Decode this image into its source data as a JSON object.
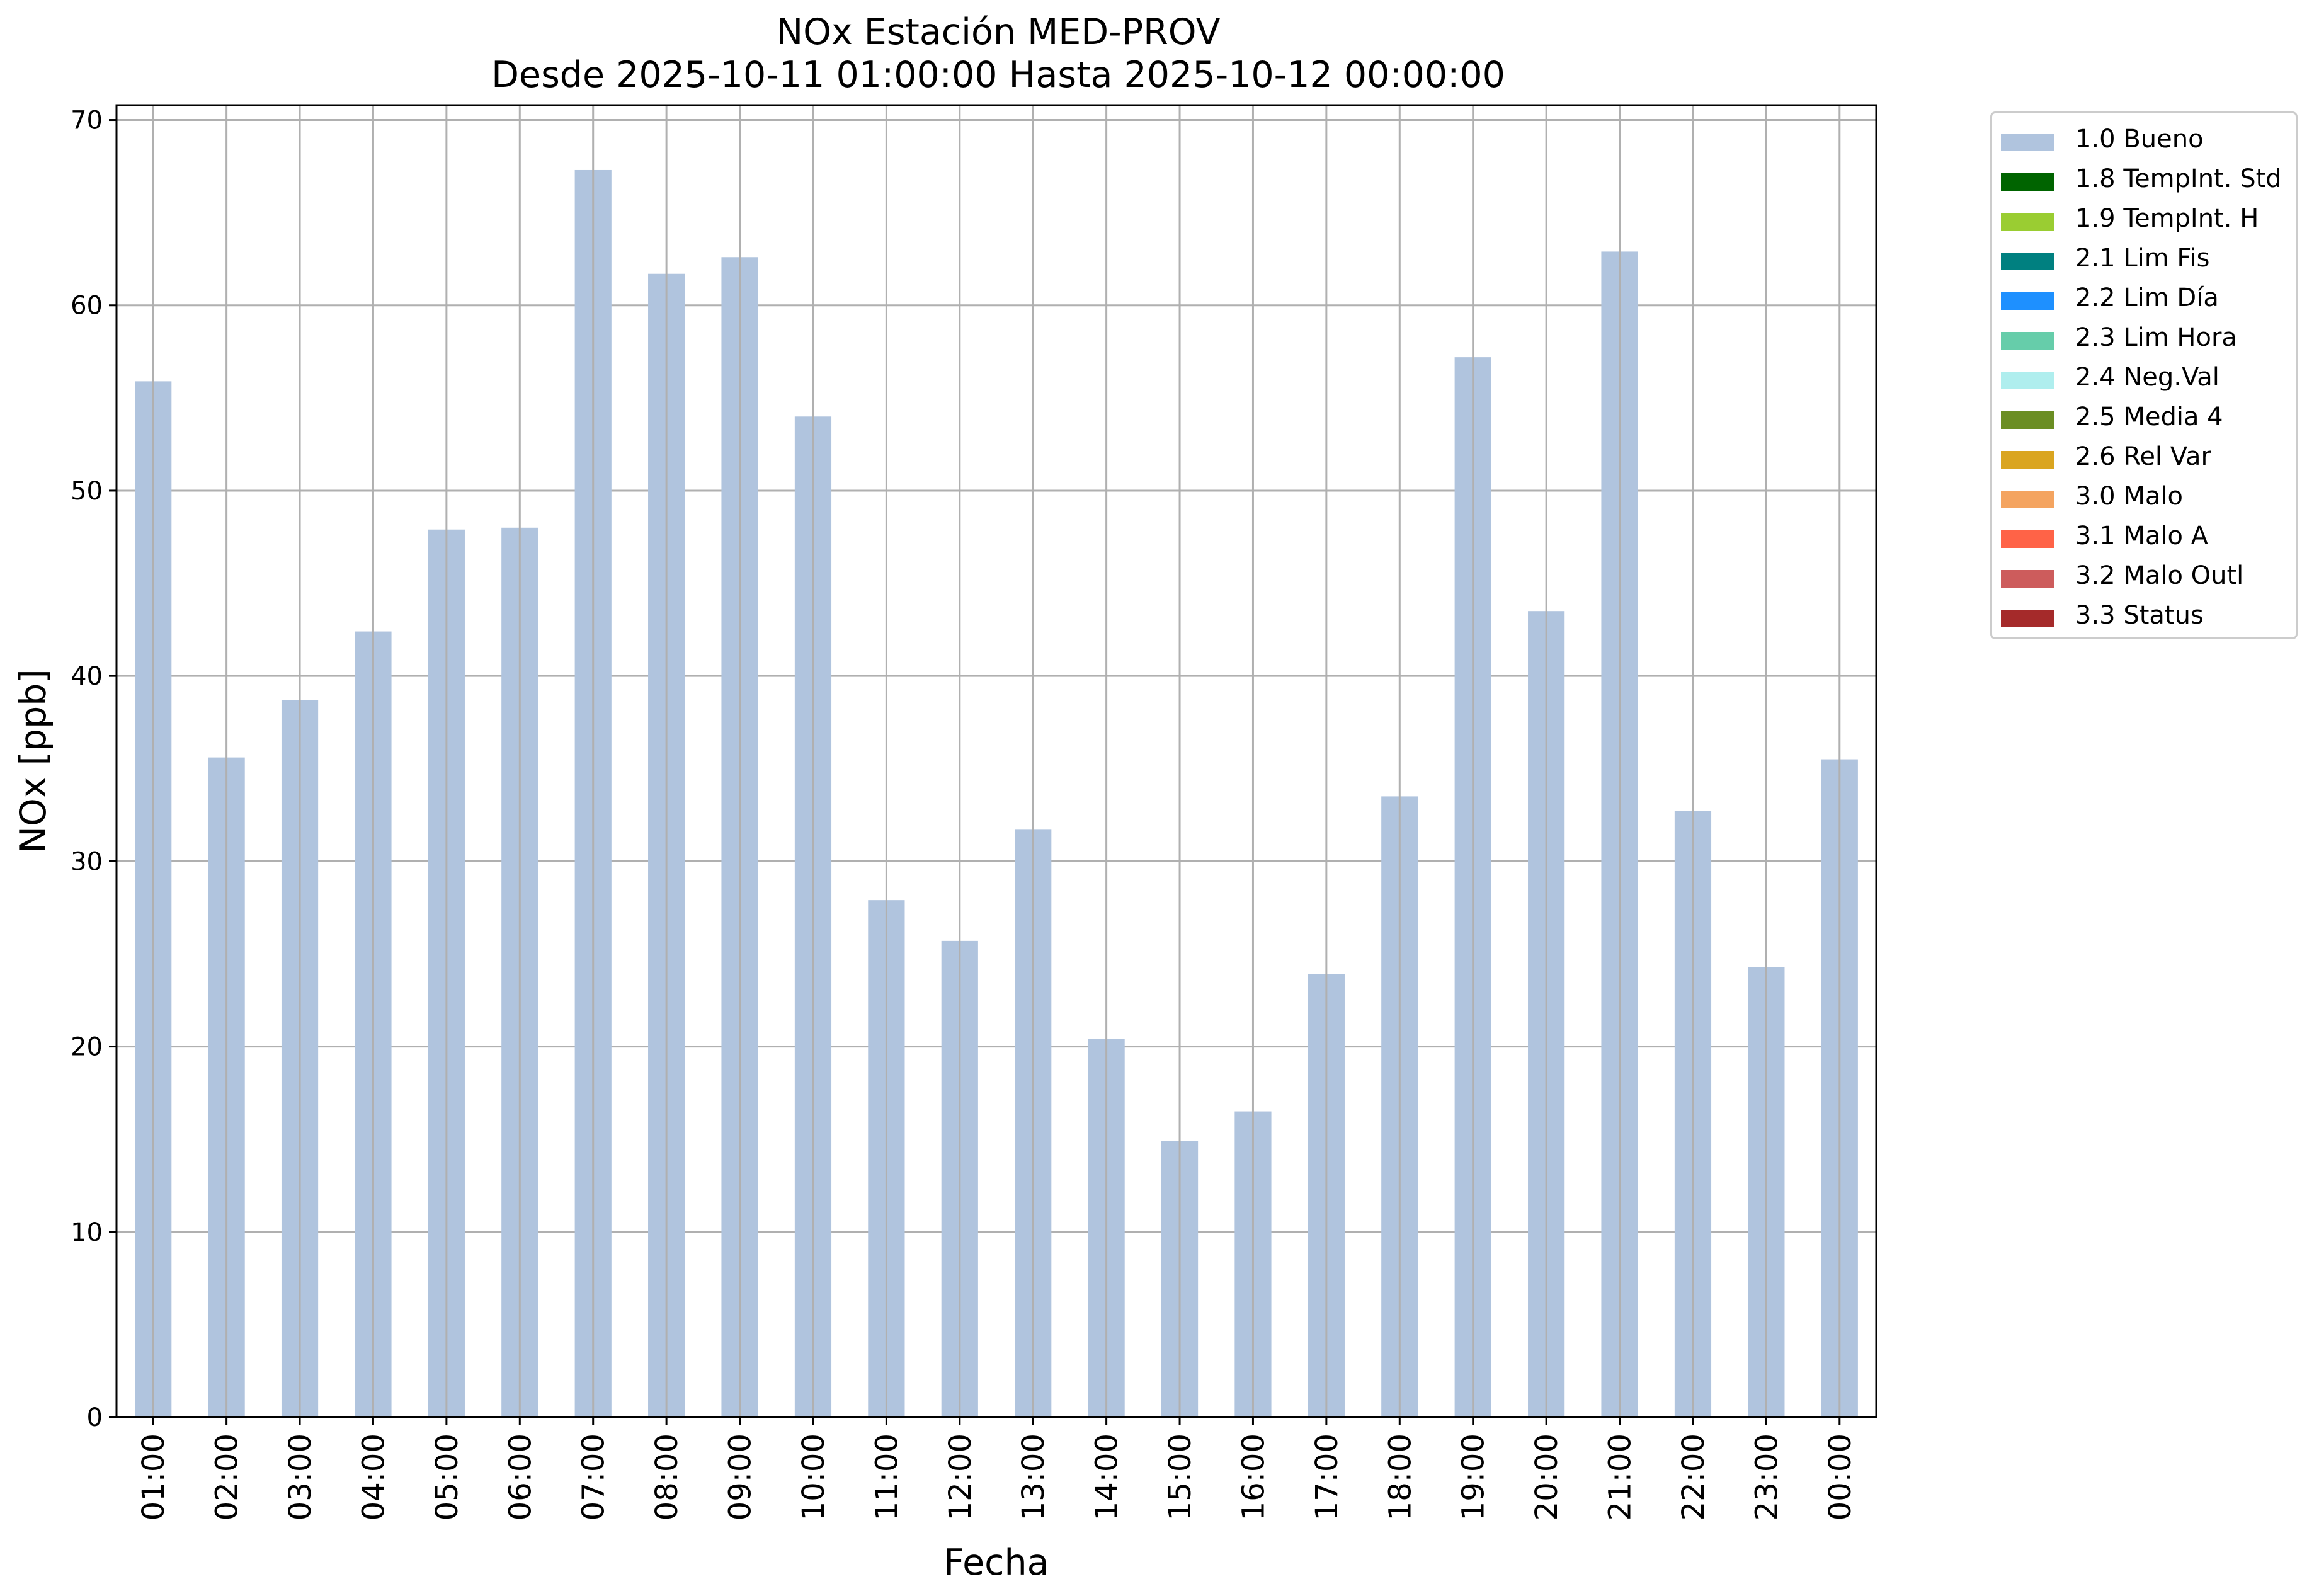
{
  "chart_data": {
    "type": "bar",
    "title": "NOx Estación MED-PROV",
    "subtitle": "Desde 2025-10-11 01:00:00 Hasta 2025-10-12 00:00:00",
    "xlabel": "Fecha",
    "ylabel": "NOx [ppb]",
    "ylim": [
      0,
      70.8
    ],
    "yticks": [
      0,
      10,
      20,
      30,
      40,
      50,
      60,
      70
    ],
    "grid": true,
    "legend_position": "outside-right-top",
    "categories": [
      "01:00",
      "02:00",
      "03:00",
      "04:00",
      "05:00",
      "06:00",
      "07:00",
      "08:00",
      "09:00",
      "10:00",
      "11:00",
      "12:00",
      "13:00",
      "14:00",
      "15:00",
      "16:00",
      "17:00",
      "18:00",
      "19:00",
      "20:00",
      "21:00",
      "22:00",
      "23:00",
      "00:00"
    ],
    "series": [
      {
        "name": "1.0 Bueno",
        "color": "#b0c4de",
        "values": [
          55.9,
          35.6,
          38.7,
          42.4,
          47.9,
          48.0,
          67.3,
          61.7,
          62.6,
          54.0,
          27.9,
          25.7,
          31.7,
          20.4,
          14.9,
          16.5,
          23.9,
          33.5,
          57.2,
          43.5,
          62.9,
          32.7,
          24.3,
          35.5
        ]
      }
    ],
    "legend": [
      {
        "label": "1.0 Bueno",
        "color": "#b0c4de"
      },
      {
        "label": "1.8 TempInt. Std",
        "color": "#006400"
      },
      {
        "label": "1.9 TempInt. H",
        "color": "#9acd32"
      },
      {
        "label": "2.1 Lim Fis",
        "color": "#008080"
      },
      {
        "label": "2.2 Lim Día",
        "color": "#1e90ff"
      },
      {
        "label": "2.3 Lim Hora",
        "color": "#66cdaa"
      },
      {
        "label": "2.4 Neg.Val",
        "color": "#afeeee"
      },
      {
        "label": "2.5 Media 4",
        "color": "#6b8e23"
      },
      {
        "label": "2.6 Rel Var",
        "color": "#daa520"
      },
      {
        "label": "3.0 Malo",
        "color": "#f4a460"
      },
      {
        "label": "3.1 Malo A",
        "color": "#ff6347"
      },
      {
        "label": "3.2 Malo Outl",
        "color": "#cd5c5c"
      },
      {
        "label": "3.3 Status",
        "color": "#a52a2a"
      }
    ]
  }
}
